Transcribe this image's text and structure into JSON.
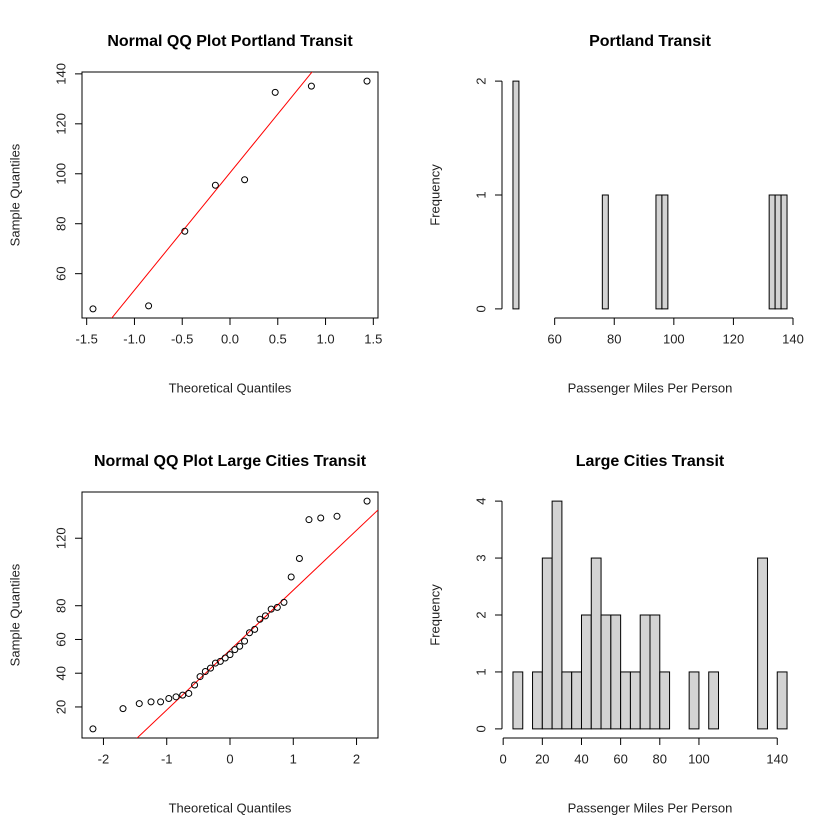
{
  "chart_data": [
    {
      "type": "qq",
      "title": "Normal QQ Plot Portland Transit",
      "x_label": "Theoretical Quantiles",
      "y_label": "Sample Quantiles",
      "x": [
        -1.434,
        -0.852,
        -0.473,
        -0.153,
        0.153,
        0.473,
        0.852,
        1.434
      ],
      "values": [
        45.9,
        47.1,
        77,
        95.4,
        97.6,
        132.6,
        135.1,
        137.1
      ],
      "color": "#000000",
      "line": {
        "intercept": 100.4,
        "slope": 47,
        "color": "#ff0000"
      },
      "xlim": [
        -1.549,
        1.549
      ],
      "ylim": [
        42.25,
        140.75
      ],
      "xticks": [
        -1.5,
        {
          "value": -1,
          "label": "-1.0"
        },
        -0.5,
        {
          "value": 0,
          "label": "0.0"
        },
        0.5,
        {
          "value": 1,
          "label": "1.0"
        },
        1.5
      ],
      "yticks": [
        60,
        80,
        100,
        120,
        140
      ]
    },
    {
      "type": "histogram",
      "title": "Portland Transit",
      "x_label": "Passenger Miles Per Person",
      "y_label": "Frequency",
      "bins": [
        46,
        48,
        50,
        52,
        54,
        56,
        58,
        60,
        62,
        64,
        66,
        68,
        70,
        72,
        74,
        76,
        78,
        80,
        82,
        84,
        86,
        88,
        90,
        92,
        94,
        96,
        98,
        100,
        102,
        104,
        106,
        108,
        110,
        112,
        114,
        116,
        118,
        120,
        122,
        124,
        126,
        128,
        130,
        132,
        134,
        136,
        138
      ],
      "values": [
        2,
        0,
        0,
        0,
        0,
        0,
        0,
        0,
        0,
        0,
        0,
        0,
        0,
        0,
        0,
        1,
        0,
        0,
        0,
        0,
        0,
        0,
        0,
        0,
        1,
        1,
        0,
        0,
        0,
        0,
        0,
        0,
        0,
        0,
        0,
        0,
        0,
        0,
        0,
        0,
        0,
        0,
        0,
        1,
        1,
        1
      ],
      "color": "#d3d3d3",
      "xlim": [
        42.32,
        141.68
      ],
      "ylim": [
        -0.08,
        2.08
      ],
      "xticks": [
        60,
        80,
        100,
        120,
        140
      ],
      "yticks": [
        0,
        1,
        2
      ]
    },
    {
      "type": "qq",
      "title": "Normal QQ Plot Large Cities Transit",
      "x_label": "Theoretical Quantiles",
      "y_label": "Sample Quantiles",
      "x": [
        -2.166,
        -1.691,
        -1.434,
        -1.248,
        -1.097,
        -0.967,
        -0.853,
        -0.748,
        -0.651,
        -0.56,
        -0.473,
        -0.39,
        -0.308,
        -0.23,
        -0.153,
        -0.076,
        0,
        0.076,
        0.153,
        0.23,
        0.308,
        0.39,
        0.473,
        0.56,
        0.651,
        0.748,
        0.853,
        0.967,
        1.097,
        1.248,
        1.434,
        1.691,
        2.166
      ],
      "values": [
        7,
        19,
        22,
        23,
        23,
        25,
        26,
        27,
        28,
        33,
        38,
        41,
        43,
        46,
        47,
        49,
        51,
        54,
        56,
        59,
        64,
        66,
        72,
        74,
        78,
        79,
        82,
        97,
        108,
        131,
        132,
        133,
        142
      ],
      "color": "#000000",
      "line": {
        "intercept": 53.7,
        "slope": 35.5,
        "color": "#ff0000"
      },
      "xlim": [
        -2.339,
        2.339
      ],
      "ylim": [
        1.6,
        147.4
      ],
      "xticks": [
        -2,
        -1,
        0,
        1,
        2
      ],
      "yticks": [
        20,
        40,
        60,
        80,
        120
      ]
    },
    {
      "type": "histogram",
      "title": "Large Cities Transit",
      "x_label": "Passenger Miles Per Person",
      "y_label": "Frequency",
      "bins": [
        5,
        10,
        15,
        20,
        25,
        30,
        35,
        40,
        45,
        50,
        55,
        60,
        65,
        70,
        75,
        80,
        85,
        90,
        95,
        100,
        105,
        110,
        115,
        120,
        125,
        130,
        135,
        140,
        145
      ],
      "values": [
        1,
        0,
        1,
        3,
        4,
        1,
        1,
        2,
        3,
        2,
        2,
        1,
        1,
        2,
        2,
        1,
        0,
        0,
        1,
        0,
        1,
        0,
        0,
        0,
        0,
        3,
        0,
        1
      ],
      "color": "#d3d3d3",
      "xlim": [
        -0.6,
        150.6
      ],
      "ylim": [
        -0.16,
        4.16
      ],
      "xticks": [
        0,
        20,
        40,
        60,
        80,
        100,
        140
      ],
      "yticks": [
        0,
        1,
        2,
        3,
        4
      ]
    }
  ]
}
